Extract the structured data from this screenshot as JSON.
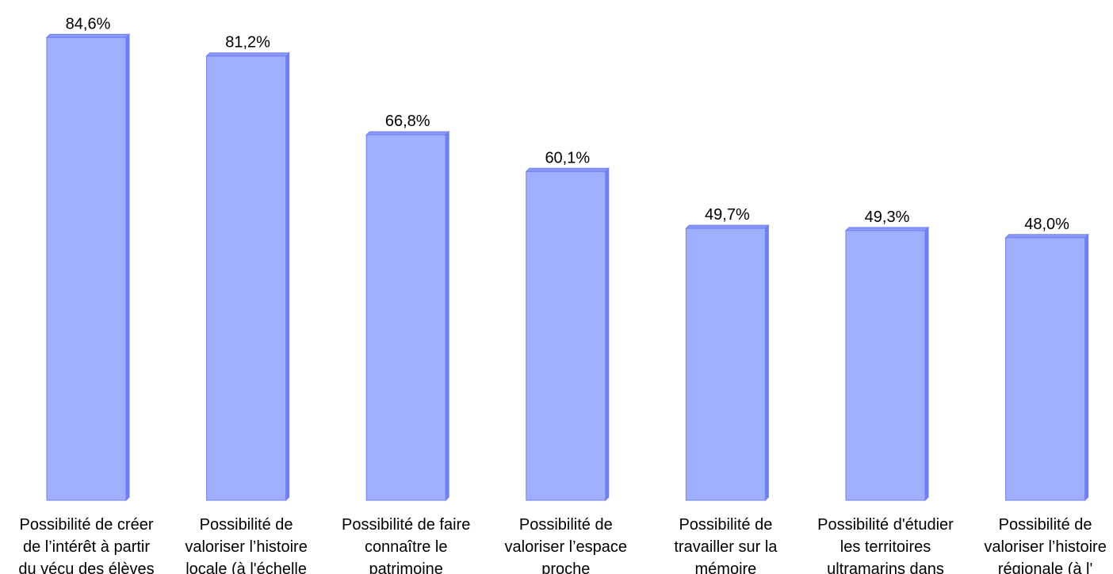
{
  "chart_data": {
    "type": "bar",
    "title": "",
    "xlabel": "",
    "ylabel": "",
    "ylim": [
      0,
      90
    ],
    "grid": false,
    "categories": [
      [
        "Possibilité de créer",
        "de l’intérêt à partir",
        "du vécu des élèves"
      ],
      [
        "Possibilité de",
        "valoriser l’histoire",
        "locale (à l'échelle"
      ],
      [
        "Possibilité de faire",
        "connaître le",
        "patrimoine"
      ],
      [
        "Possibilité de",
        "valoriser l’espace",
        "proche"
      ],
      [
        "Possibilité de",
        "travailler sur la",
        "mémoire"
      ],
      [
        "Possibilité d'étudier",
        "les territoires",
        "ultramarins dans"
      ],
      [
        "Possibilité de",
        "valoriser l’histoire",
        "régionale (à l'"
      ]
    ],
    "values": [
      84.6,
      81.2,
      66.8,
      60.1,
      49.7,
      49.3,
      48.0
    ],
    "value_labels": [
      "84,6%",
      "81,2%",
      "66,8%",
      "60,1%",
      "49,7%",
      "49,3%",
      "48,0%"
    ],
    "colors": {
      "bar_front": "#a0aefe",
      "bar_edge": "#6f7ff5",
      "bar_side": "#6f7ff5",
      "bar_top": "#8a98fb"
    }
  }
}
